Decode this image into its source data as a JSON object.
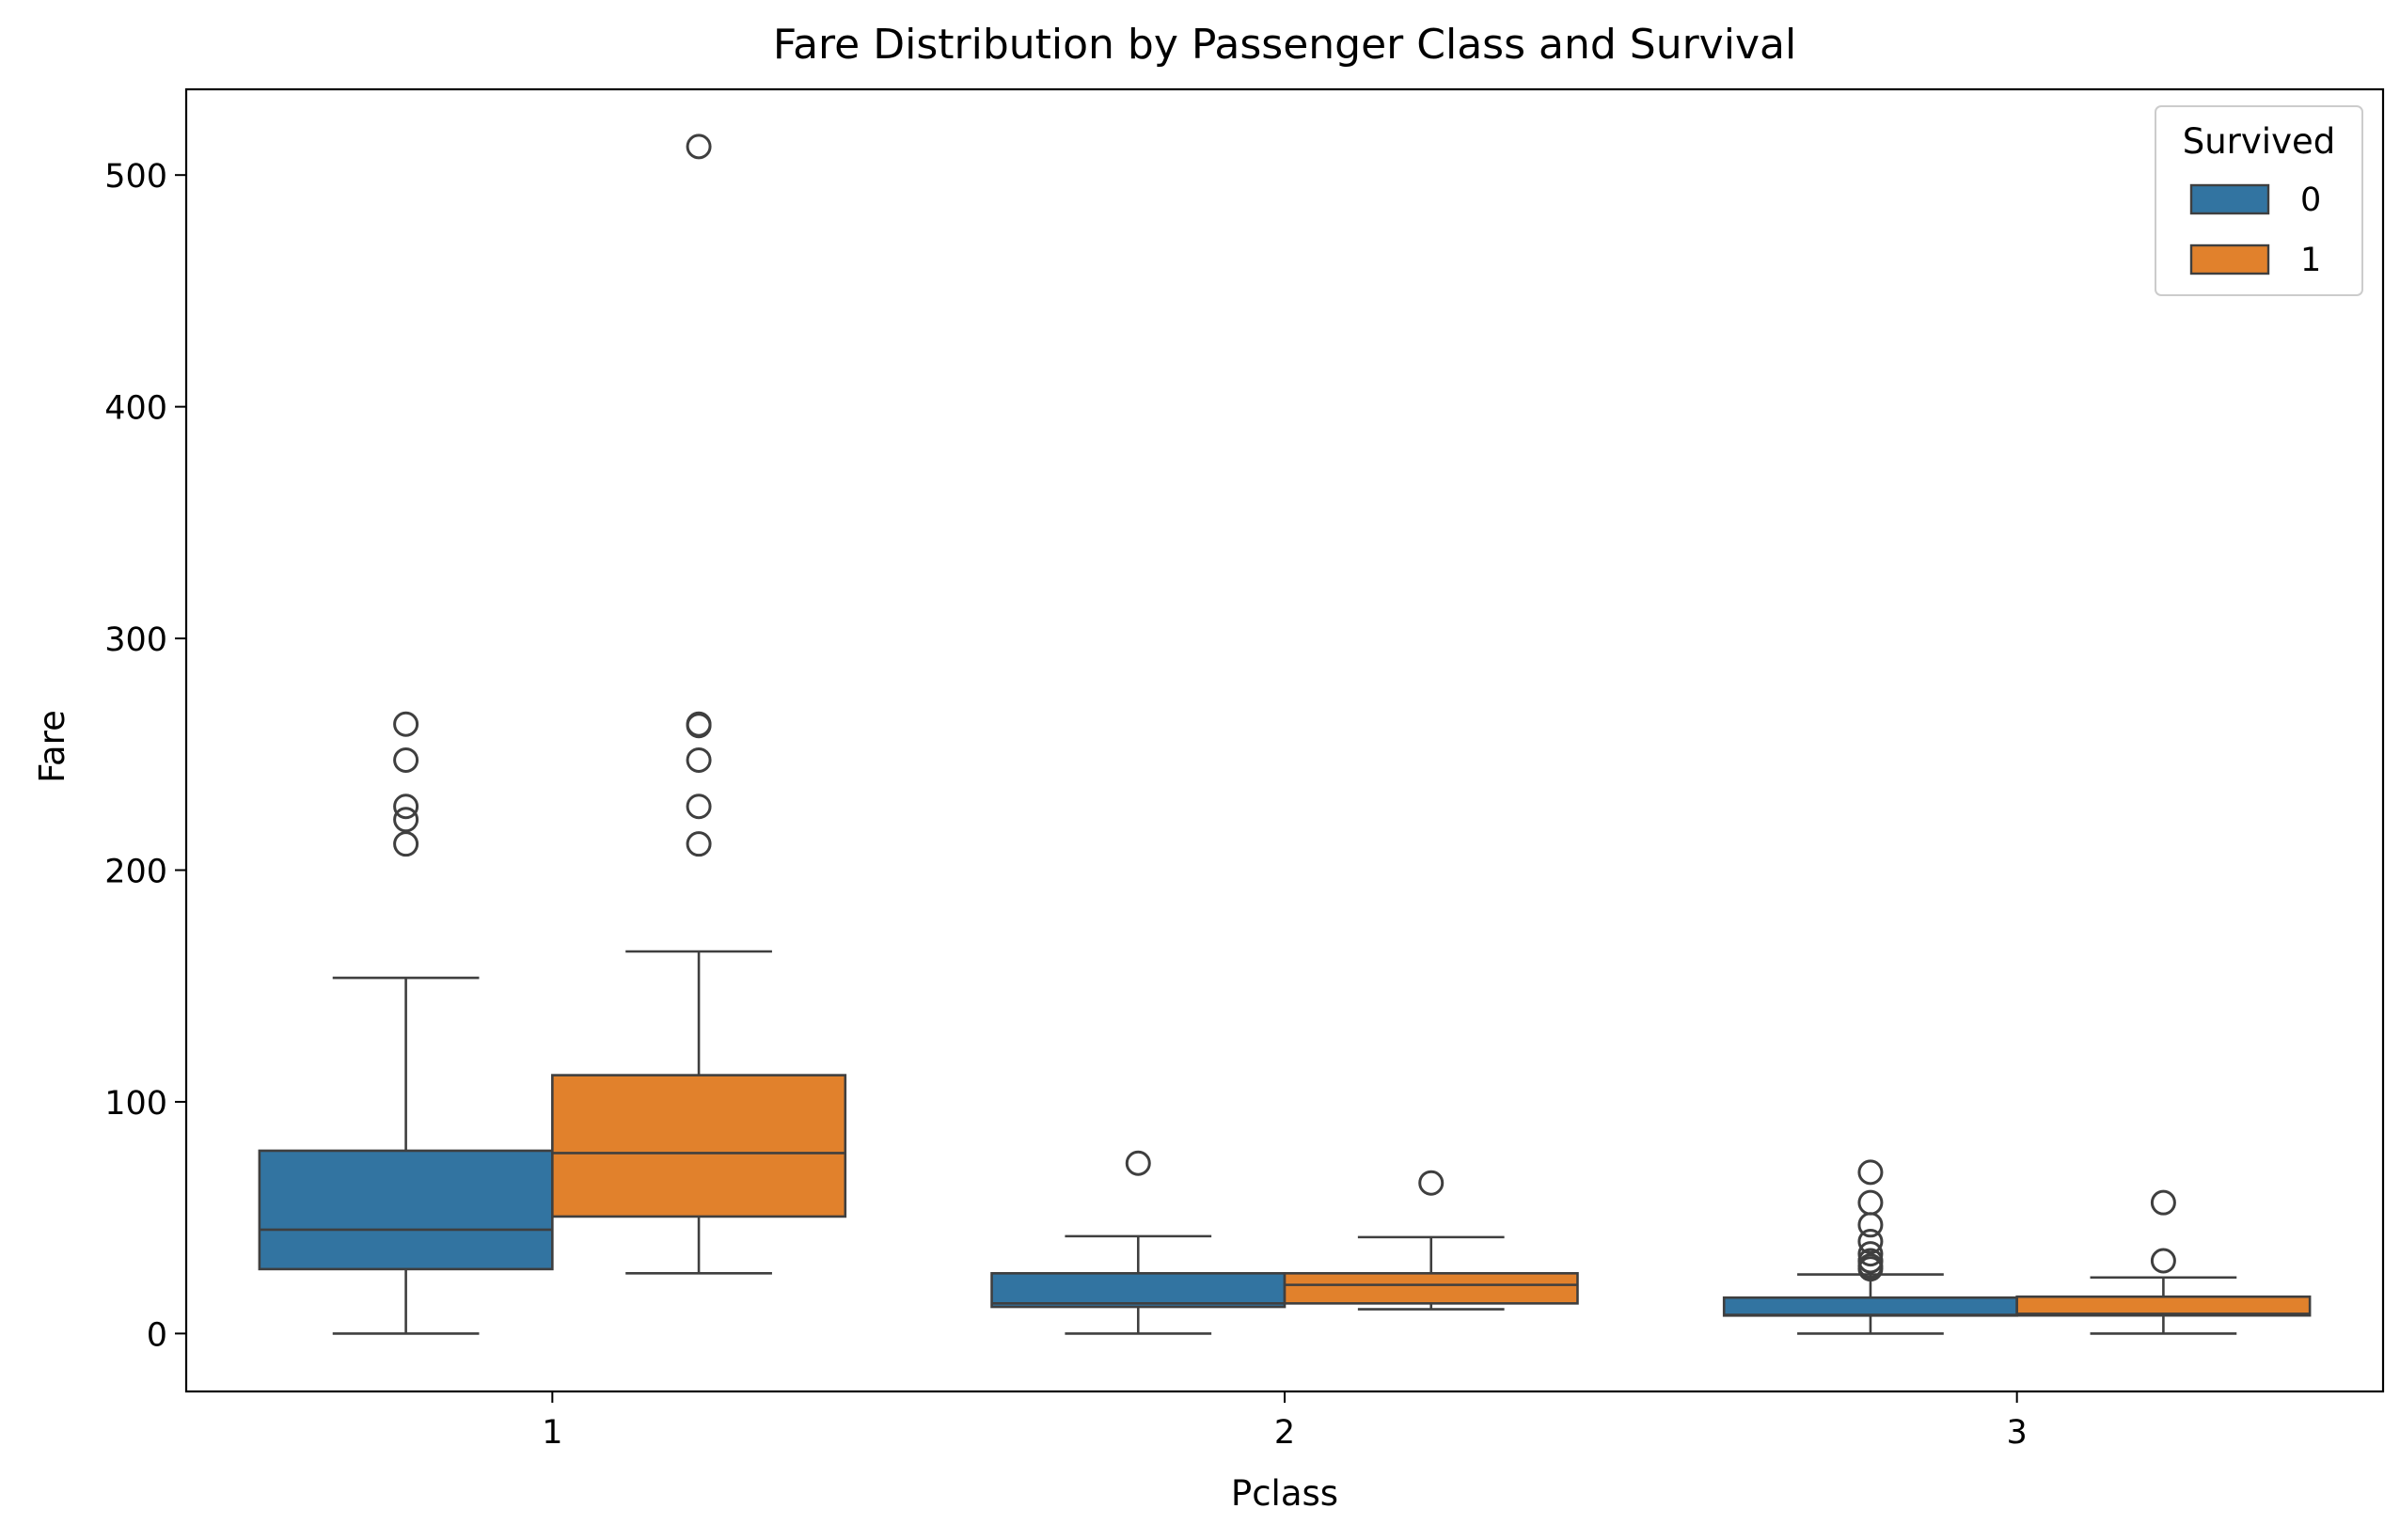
{
  "chart_data": {
    "type": "box",
    "title": "Fare Distribution by Passenger Class and Survival",
    "xlabel": "Pclass",
    "ylabel": "Fare",
    "ylim": [
      -25,
      537
    ],
    "yticks": [
      0,
      100,
      200,
      300,
      400,
      500
    ],
    "categories": [
      "1",
      "2",
      "3"
    ],
    "grid": false,
    "legend": {
      "title": "Survived",
      "placement": "top-right"
    },
    "series": [
      {
        "name": "0",
        "color": "#3274a1",
        "boxes": [
          {
            "category": "1",
            "whisker_low": 0,
            "q1": 27.8,
            "median": 44.8,
            "q3": 78.9,
            "whisker_high": 153.5,
            "outliers": [
              211.3,
              221.8,
              227.5,
              247.5,
              263.0
            ]
          },
          {
            "category": "2",
            "whisker_low": 0,
            "q1": 11.5,
            "median": 13.0,
            "q3": 26.0,
            "whisker_high": 42.0,
            "outliers": [
              73.5
            ]
          },
          {
            "category": "3",
            "whisker_low": 0,
            "q1": 7.75,
            "median": 8.05,
            "q3": 15.5,
            "whisker_high": 25.5,
            "outliers": [
              27.9,
              29.1,
              31.3,
              31.4,
              34.4,
              39.7,
              46.9,
              56.5,
              69.6
            ]
          }
        ]
      },
      {
        "name": "1",
        "color": "#e1812c",
        "boxes": [
          {
            "category": "1",
            "whisker_low": 26.0,
            "q1": 50.5,
            "median": 77.9,
            "q3": 111.5,
            "whisker_high": 164.9,
            "outliers": [
              211.3,
              227.5,
              247.5,
              262.4,
              263.0,
              512.3
            ]
          },
          {
            "category": "2",
            "whisker_low": 10.5,
            "q1": 13.0,
            "median": 21.0,
            "q3": 26.0,
            "whisker_high": 41.6,
            "outliers": [
              65.0
            ]
          },
          {
            "category": "3",
            "whisker_low": 0,
            "q1": 7.8,
            "median": 8.5,
            "q3": 15.9,
            "whisker_high": 24.2,
            "outliers": [
              31.4,
              56.5
            ]
          }
        ]
      }
    ]
  }
}
